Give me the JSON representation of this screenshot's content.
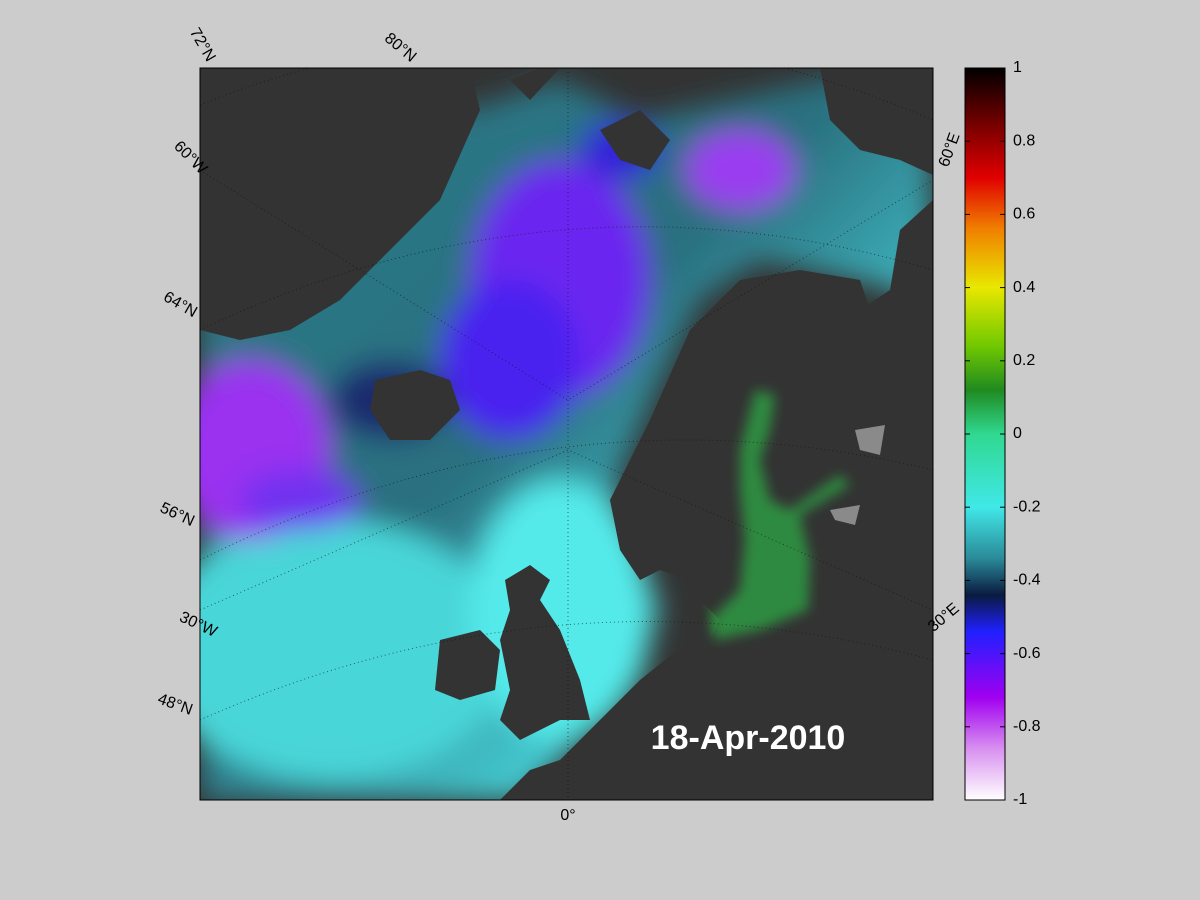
{
  "map": {
    "date_label": "18-Apr-2010",
    "grid_labels": [
      "72°N",
      "80°N",
      "60°W",
      "64°N",
      "56°N",
      "30°W",
      "48°N",
      "0°",
      "30°E",
      "60°E"
    ],
    "colorbar": {
      "lim": [
        -1,
        1
      ],
      "ticks": [
        1,
        0.8,
        0.6,
        0.4,
        0.2,
        0,
        -0.2,
        -0.4,
        -0.6,
        -0.8,
        -1
      ]
    }
  }
}
